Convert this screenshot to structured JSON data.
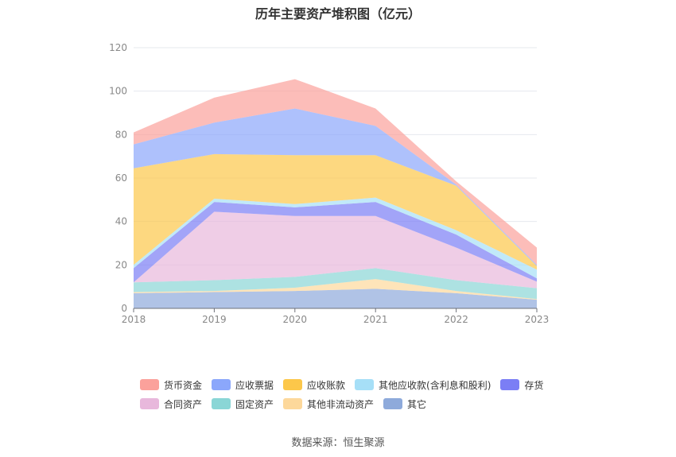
{
  "chart_data": {
    "type": "area",
    "title": "历年主要资产堆积图（亿元）",
    "source": "数据来源：恒生聚源",
    "x": [
      "2018",
      "2019",
      "2020",
      "2021",
      "2022",
      "2023"
    ],
    "ylim": [
      0,
      120
    ],
    "yticks": [
      "0",
      "20",
      "40",
      "60",
      "80",
      "100",
      "120"
    ],
    "stacked": true,
    "grid": true,
    "legend_position": "bottom",
    "series": [
      {
        "name": "其它",
        "color": "#8eaadb",
        "values": [
          7,
          7.5,
          8,
          9,
          7,
          4
        ]
      },
      {
        "name": "其他非流动资产",
        "color": "#fdd89b",
        "values": [
          0.5,
          0.5,
          1.5,
          4.5,
          1,
          0.3
        ]
      },
      {
        "name": "固定资产",
        "color": "#8ad6d6",
        "values": [
          4.5,
          5,
          5,
          5,
          5,
          5
        ]
      },
      {
        "name": "合同资产",
        "color": "#e8b8dc",
        "values": [
          0,
          31.5,
          28,
          24,
          15,
          3
        ]
      },
      {
        "name": "存货",
        "color": "#7b7ef5",
        "values": [
          6.5,
          4.5,
          4,
          6.5,
          6,
          1.5
        ]
      },
      {
        "name": "其他应收款(含利息和股利)",
        "color": "#a6dff7",
        "values": [
          1.5,
          1.5,
          1.5,
          2,
          2,
          4
        ]
      },
      {
        "name": "应收账款",
        "color": "#fcc74a",
        "values": [
          44.5,
          20.5,
          22.5,
          19.5,
          20.5,
          1.7
        ]
      },
      {
        "name": "应收票据",
        "color": "#8ba7fb",
        "values": [
          11,
          14.5,
          21.5,
          13.5,
          0.5,
          0.5
        ]
      },
      {
        "name": "货币资金",
        "color": "#fba19b",
        "values": [
          5.5,
          11.5,
          13.5,
          8,
          1.5,
          8
        ]
      }
    ],
    "legend_order": [
      "货币资金",
      "应收票据",
      "应收账款",
      "其他应收款(含利息和股利)",
      "存货",
      "合同资产",
      "固定资产",
      "其他非流动资产",
      "其它"
    ]
  }
}
